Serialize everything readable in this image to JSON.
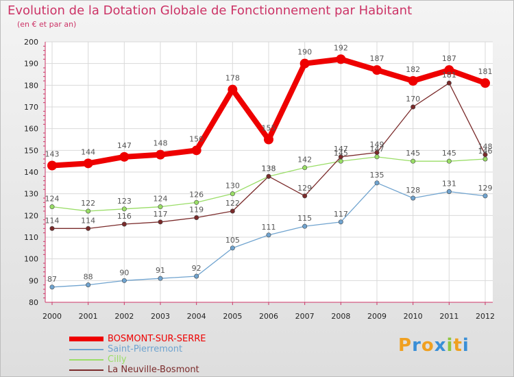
{
  "header": {
    "title": "Evolution de la Dotation Globale de Fonctionnement par Habitant",
    "subtitle": "(en € et par an)"
  },
  "logo": {
    "letters": [
      "P",
      "r",
      "o",
      "x",
      "i",
      "t",
      "i"
    ],
    "colors": [
      "#f0a020",
      "#3a8fd6",
      "#f0a020",
      "#3a8fd6",
      "#8ec63f",
      "#f0a020",
      "#3a8fd6"
    ]
  },
  "chart_data": {
    "type": "line",
    "title": "Evolution de la Dotation Globale de Fonctionnement par Habitant",
    "xlabel": "",
    "ylabel": "(en € et par an)",
    "ylim": [
      80,
      200
    ],
    "yticks": [
      80,
      90,
      100,
      110,
      120,
      130,
      140,
      150,
      160,
      170,
      180,
      190,
      200
    ],
    "grid": true,
    "legend": "bottom-left",
    "categories": [
      "2000",
      "2001",
      "2002",
      "2003",
      "2004",
      "2005",
      "2006",
      "2007",
      "2008",
      "2009",
      "2010",
      "2011",
      "2012"
    ],
    "series": [
      {
        "name": "BOSMONT-SUR-SERRE",
        "color": "#ee0000",
        "values": [
          143,
          144,
          147,
          148,
          150,
          178,
          155,
          190,
          192,
          187,
          182,
          187,
          181
        ]
      },
      {
        "name": "Saint-Pierremont",
        "color": "#6fa3cf",
        "values": [
          87,
          88,
          90,
          91,
          92,
          105,
          111,
          115,
          117,
          135,
          128,
          131,
          129
        ]
      },
      {
        "name": "Cilly",
        "color": "#99dd66",
        "values": [
          124,
          122,
          123,
          124,
          126,
          130,
          138,
          142,
          145,
          147,
          145,
          145,
          146
        ]
      },
      {
        "name": "La Neuville-Bosmont",
        "color": "#7a2a2a",
        "values": [
          114,
          114,
          116,
          117,
          119,
          122,
          138,
          129,
          147,
          149,
          170,
          181,
          148
        ]
      }
    ]
  }
}
